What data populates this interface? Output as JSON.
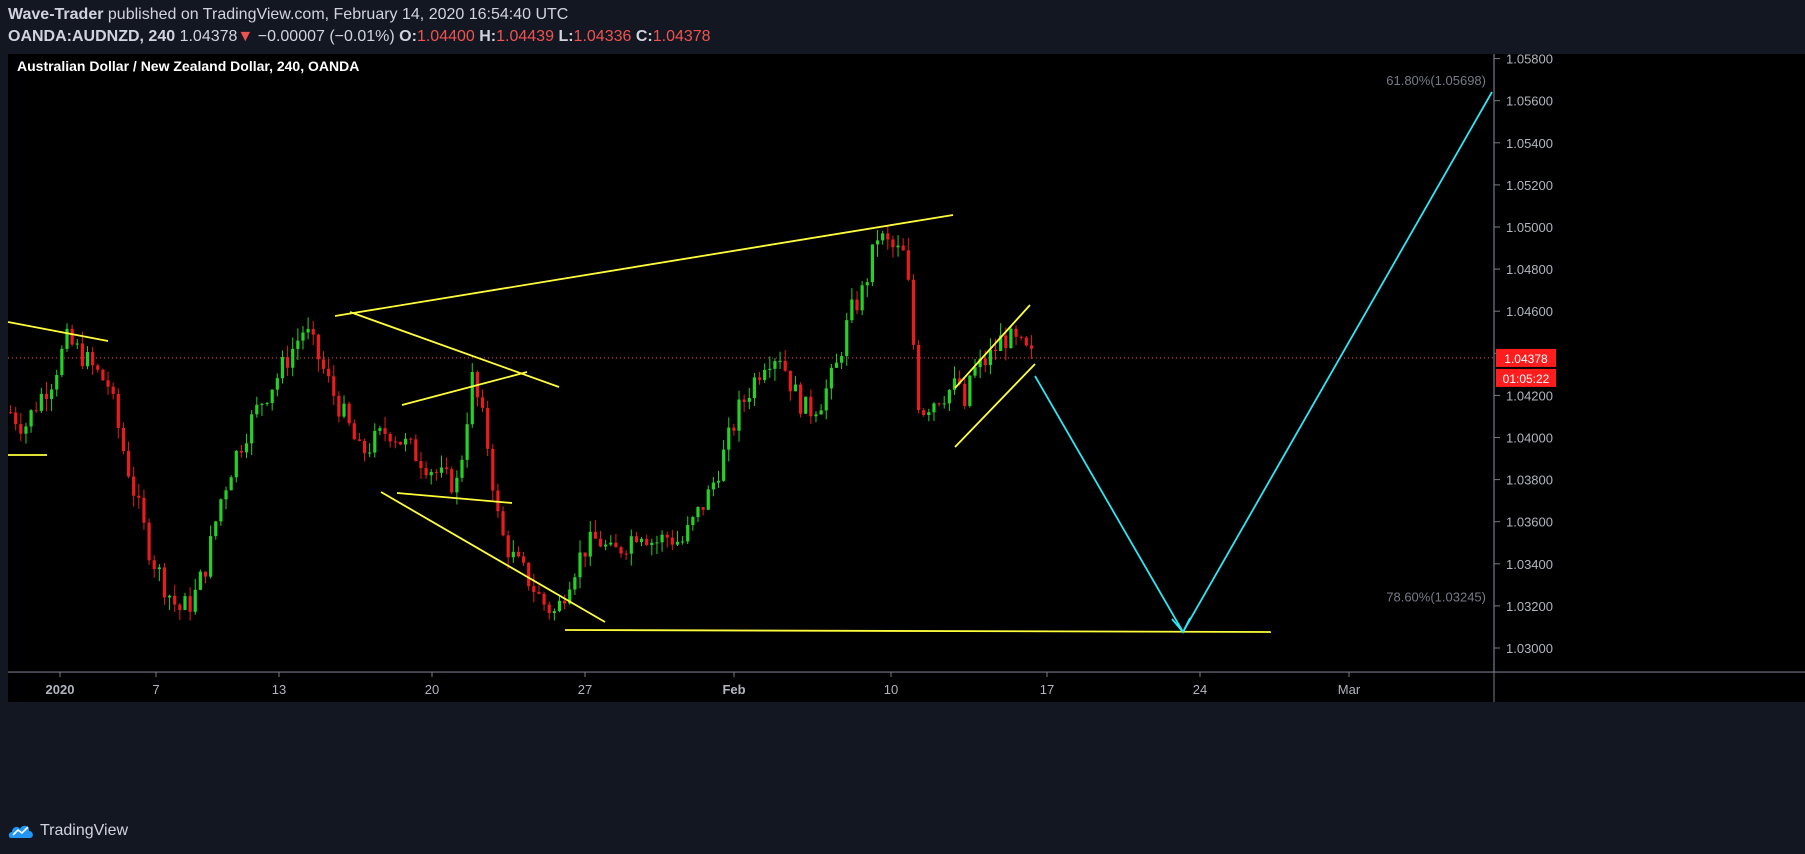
{
  "header": {
    "author": "Wave-Trader",
    "published_text": "published on TradingView.com, February 14, 2020 16:54:40 UTC",
    "symbol": "OANDA:AUDNZD, 240",
    "last": "1.04378",
    "arrow": "▼",
    "change": "−0.00007 (−0.01%)",
    "o_label": "O:",
    "o_value": "1.04400",
    "h_label": "H:",
    "h_value": "1.04439",
    "l_label": "L:",
    "l_value": "1.04336",
    "c_label": "C:",
    "c_value": "1.04378"
  },
  "chart_data": {
    "type": "candlestick",
    "title": "Australian Dollar / New Zealand Dollar, 240, OANDA",
    "ylim": [
      1.029,
      1.0587
    ],
    "y_ticks": [
      "1.05800",
      "1.05600",
      "1.05400",
      "1.05200",
      "1.05000",
      "1.04800",
      "1.04600",
      "1.04400",
      "1.04200",
      "1.04000",
      "1.03800",
      "1.03600",
      "1.03400",
      "1.03200",
      "1.03000"
    ],
    "x_ticks": [
      "2020",
      "7",
      "13",
      "20",
      "27",
      "Feb",
      "10",
      "17",
      "24",
      "Mar"
    ],
    "current_price": "1.04378",
    "countdown": "01:05:22",
    "fib_labels": [
      {
        "text": "61.80%(1.05698)",
        "price": 1.05698
      },
      {
        "text": "78.60%(1.03245)",
        "price": 1.03245
      }
    ],
    "price_path": [
      1.0412,
      1.0405,
      1.0418,
      1.0428,
      1.0446,
      1.044,
      1.0432,
      1.0425,
      1.0396,
      1.037,
      1.0345,
      1.033,
      1.0318,
      1.0322,
      1.034,
      1.037,
      1.039,
      1.0405,
      1.0418,
      1.0428,
      1.044,
      1.0452,
      1.0438,
      1.0422,
      1.0408,
      1.0392,
      1.0398,
      1.0404,
      1.0398,
      1.0392,
      1.0386,
      1.038,
      1.0378,
      1.0428,
      1.0402,
      1.0355,
      1.0342,
      1.0333,
      1.0322,
      1.0316,
      1.0334,
      1.0347,
      1.0352,
      1.0344,
      1.035,
      1.0357,
      1.035,
      1.0353,
      1.035,
      1.0362,
      1.0374,
      1.0392,
      1.0412,
      1.0425,
      1.0438,
      1.044,
      1.0422,
      1.0412,
      1.0418,
      1.0432,
      1.0458,
      1.047,
      1.0496,
      1.049,
      1.0486,
      1.0412,
      1.0418,
      1.0422,
      1.0426,
      1.0432,
      1.0438,
      1.0448,
      1.0444,
      1.0438
    ],
    "drawings": {
      "yellow_lines": [
        [
          [
            8,
            322
          ],
          [
            108,
            341
          ]
        ],
        [
          [
            8,
            455
          ],
          [
            47,
            455
          ]
        ],
        [
          [
            335,
            316
          ],
          [
            953,
            215
          ]
        ],
        [
          [
            350,
            312
          ],
          [
            559,
            387
          ]
        ],
        [
          [
            402,
            405
          ],
          [
            527,
            372
          ]
        ],
        [
          [
            397,
            493
          ],
          [
            512,
            503
          ]
        ],
        [
          [
            381,
            492
          ],
          [
            605,
            622
          ]
        ],
        [
          [
            565,
            630
          ],
          [
            1271,
            632
          ]
        ],
        [
          [
            955,
            388
          ],
          [
            1030,
            305
          ]
        ],
        [
          [
            955,
            447
          ],
          [
            1035,
            364
          ]
        ]
      ],
      "cyan_path": [
        [
          1035,
          376
        ],
        [
          1183,
          632
        ],
        [
          1492,
          92
        ]
      ]
    }
  },
  "footer": {
    "brand": "TradingView"
  }
}
